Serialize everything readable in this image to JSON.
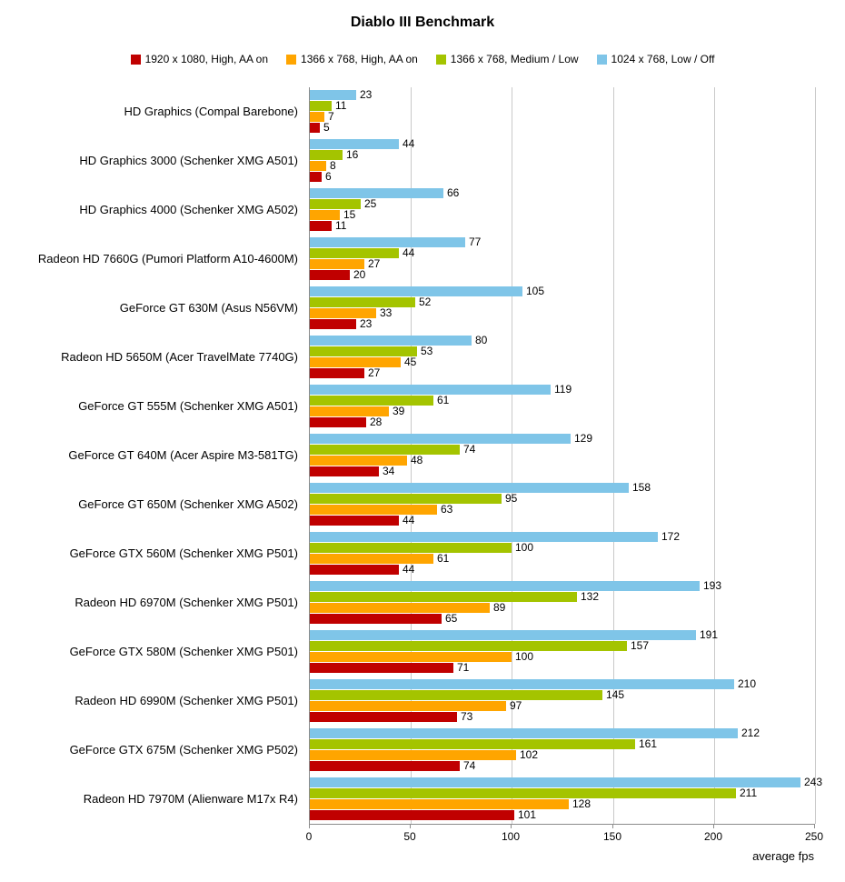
{
  "chart_data": {
    "type": "bar",
    "orientation": "horizontal",
    "title": "Diablo III Benchmark",
    "xlabel": "average fps",
    "xlim": [
      0,
      250
    ],
    "xticks": [
      0,
      50,
      100,
      150,
      200,
      250
    ],
    "grid": true,
    "legend_position": "top",
    "categories": [
      "HD Graphics (Compal Barebone)",
      "HD Graphics 3000 (Schenker XMG A501)",
      "HD Graphics 4000 (Schenker XMG A502)",
      "Radeon HD 7660G (Pumori Platform A10-4600M)",
      "GeForce GT 630M (Asus N56VM)",
      "Radeon HD 5650M (Acer TravelMate 7740G)",
      "GeForce GT 555M (Schenker XMG A501)",
      "GeForce GT 640M (Acer Aspire M3-581TG)",
      "GeForce GT 650M (Schenker XMG A502)",
      "GeForce GTX 560M (Schenker XMG P501)",
      "Radeon HD 6970M (Schenker XMG P501)",
      "GeForce GTX 580M (Schenker XMG P501)",
      "Radeon HD 6990M (Schenker XMG P501)",
      "GeForce GTX 675M (Schenker XMG P502)",
      "Radeon HD 7970M (Alienware M17x R4)"
    ],
    "series": [
      {
        "name": "1920 x 1080, High, AA on",
        "color": "#C00000",
        "values": [
          5,
          6,
          11,
          20,
          23,
          27,
          28,
          34,
          44,
          44,
          65,
          71,
          73,
          74,
          101
        ]
      },
      {
        "name": "1366 x 768, High, AA on",
        "color": "#FFA500",
        "values": [
          7,
          8,
          15,
          27,
          33,
          45,
          39,
          48,
          63,
          61,
          89,
          100,
          97,
          102,
          128
        ]
      },
      {
        "name": "1366 x 768, Medium / Low",
        "color": "#A4C400",
        "values": [
          11,
          16,
          25,
          44,
          52,
          53,
          61,
          74,
          95,
          100,
          132,
          157,
          145,
          161,
          211
        ]
      },
      {
        "name": "1024 x 768, Low / Off",
        "color": "#7FC5E8",
        "values": [
          23,
          44,
          66,
          77,
          105,
          80,
          119,
          129,
          158,
          172,
          193,
          191,
          210,
          212,
          243
        ]
      }
    ]
  }
}
